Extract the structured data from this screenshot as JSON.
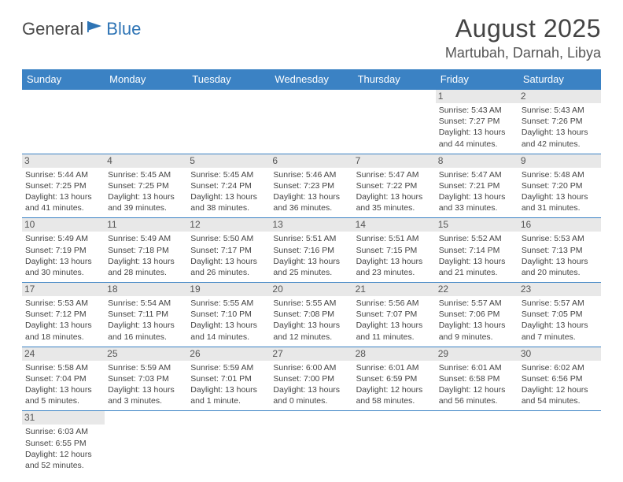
{
  "logo": {
    "text1": "General",
    "text2": "Blue"
  },
  "title": "August 2025",
  "location": "Martubah, Darnah, Libya",
  "colors": {
    "header_bg": "#3b82c4",
    "header_text": "#ffffff",
    "daynum_bg": "#e8e8e8",
    "border": "#3b82c4",
    "logo_gray": "#4a4a4a",
    "logo_blue": "#2e74b5"
  },
  "weekdays": [
    "Sunday",
    "Monday",
    "Tuesday",
    "Wednesday",
    "Thursday",
    "Friday",
    "Saturday"
  ],
  "weeks": [
    [
      null,
      null,
      null,
      null,
      null,
      {
        "d": "1",
        "sr": "Sunrise: 5:43 AM",
        "ss": "Sunset: 7:27 PM",
        "dl1": "Daylight: 13 hours",
        "dl2": "and 44 minutes."
      },
      {
        "d": "2",
        "sr": "Sunrise: 5:43 AM",
        "ss": "Sunset: 7:26 PM",
        "dl1": "Daylight: 13 hours",
        "dl2": "and 42 minutes."
      }
    ],
    [
      {
        "d": "3",
        "sr": "Sunrise: 5:44 AM",
        "ss": "Sunset: 7:25 PM",
        "dl1": "Daylight: 13 hours",
        "dl2": "and 41 minutes."
      },
      {
        "d": "4",
        "sr": "Sunrise: 5:45 AM",
        "ss": "Sunset: 7:25 PM",
        "dl1": "Daylight: 13 hours",
        "dl2": "and 39 minutes."
      },
      {
        "d": "5",
        "sr": "Sunrise: 5:45 AM",
        "ss": "Sunset: 7:24 PM",
        "dl1": "Daylight: 13 hours",
        "dl2": "and 38 minutes."
      },
      {
        "d": "6",
        "sr": "Sunrise: 5:46 AM",
        "ss": "Sunset: 7:23 PM",
        "dl1": "Daylight: 13 hours",
        "dl2": "and 36 minutes."
      },
      {
        "d": "7",
        "sr": "Sunrise: 5:47 AM",
        "ss": "Sunset: 7:22 PM",
        "dl1": "Daylight: 13 hours",
        "dl2": "and 35 minutes."
      },
      {
        "d": "8",
        "sr": "Sunrise: 5:47 AM",
        "ss": "Sunset: 7:21 PM",
        "dl1": "Daylight: 13 hours",
        "dl2": "and 33 minutes."
      },
      {
        "d": "9",
        "sr": "Sunrise: 5:48 AM",
        "ss": "Sunset: 7:20 PM",
        "dl1": "Daylight: 13 hours",
        "dl2": "and 31 minutes."
      }
    ],
    [
      {
        "d": "10",
        "sr": "Sunrise: 5:49 AM",
        "ss": "Sunset: 7:19 PM",
        "dl1": "Daylight: 13 hours",
        "dl2": "and 30 minutes."
      },
      {
        "d": "11",
        "sr": "Sunrise: 5:49 AM",
        "ss": "Sunset: 7:18 PM",
        "dl1": "Daylight: 13 hours",
        "dl2": "and 28 minutes."
      },
      {
        "d": "12",
        "sr": "Sunrise: 5:50 AM",
        "ss": "Sunset: 7:17 PM",
        "dl1": "Daylight: 13 hours",
        "dl2": "and 26 minutes."
      },
      {
        "d": "13",
        "sr": "Sunrise: 5:51 AM",
        "ss": "Sunset: 7:16 PM",
        "dl1": "Daylight: 13 hours",
        "dl2": "and 25 minutes."
      },
      {
        "d": "14",
        "sr": "Sunrise: 5:51 AM",
        "ss": "Sunset: 7:15 PM",
        "dl1": "Daylight: 13 hours",
        "dl2": "and 23 minutes."
      },
      {
        "d": "15",
        "sr": "Sunrise: 5:52 AM",
        "ss": "Sunset: 7:14 PM",
        "dl1": "Daylight: 13 hours",
        "dl2": "and 21 minutes."
      },
      {
        "d": "16",
        "sr": "Sunrise: 5:53 AM",
        "ss": "Sunset: 7:13 PM",
        "dl1": "Daylight: 13 hours",
        "dl2": "and 20 minutes."
      }
    ],
    [
      {
        "d": "17",
        "sr": "Sunrise: 5:53 AM",
        "ss": "Sunset: 7:12 PM",
        "dl1": "Daylight: 13 hours",
        "dl2": "and 18 minutes."
      },
      {
        "d": "18",
        "sr": "Sunrise: 5:54 AM",
        "ss": "Sunset: 7:11 PM",
        "dl1": "Daylight: 13 hours",
        "dl2": "and 16 minutes."
      },
      {
        "d": "19",
        "sr": "Sunrise: 5:55 AM",
        "ss": "Sunset: 7:10 PM",
        "dl1": "Daylight: 13 hours",
        "dl2": "and 14 minutes."
      },
      {
        "d": "20",
        "sr": "Sunrise: 5:55 AM",
        "ss": "Sunset: 7:08 PM",
        "dl1": "Daylight: 13 hours",
        "dl2": "and 12 minutes."
      },
      {
        "d": "21",
        "sr": "Sunrise: 5:56 AM",
        "ss": "Sunset: 7:07 PM",
        "dl1": "Daylight: 13 hours",
        "dl2": "and 11 minutes."
      },
      {
        "d": "22",
        "sr": "Sunrise: 5:57 AM",
        "ss": "Sunset: 7:06 PM",
        "dl1": "Daylight: 13 hours",
        "dl2": "and 9 minutes."
      },
      {
        "d": "23",
        "sr": "Sunrise: 5:57 AM",
        "ss": "Sunset: 7:05 PM",
        "dl1": "Daylight: 13 hours",
        "dl2": "and 7 minutes."
      }
    ],
    [
      {
        "d": "24",
        "sr": "Sunrise: 5:58 AM",
        "ss": "Sunset: 7:04 PM",
        "dl1": "Daylight: 13 hours",
        "dl2": "and 5 minutes."
      },
      {
        "d": "25",
        "sr": "Sunrise: 5:59 AM",
        "ss": "Sunset: 7:03 PM",
        "dl1": "Daylight: 13 hours",
        "dl2": "and 3 minutes."
      },
      {
        "d": "26",
        "sr": "Sunrise: 5:59 AM",
        "ss": "Sunset: 7:01 PM",
        "dl1": "Daylight: 13 hours",
        "dl2": "and 1 minute."
      },
      {
        "d": "27",
        "sr": "Sunrise: 6:00 AM",
        "ss": "Sunset: 7:00 PM",
        "dl1": "Daylight: 13 hours",
        "dl2": "and 0 minutes."
      },
      {
        "d": "28",
        "sr": "Sunrise: 6:01 AM",
        "ss": "Sunset: 6:59 PM",
        "dl1": "Daylight: 12 hours",
        "dl2": "and 58 minutes."
      },
      {
        "d": "29",
        "sr": "Sunrise: 6:01 AM",
        "ss": "Sunset: 6:58 PM",
        "dl1": "Daylight: 12 hours",
        "dl2": "and 56 minutes."
      },
      {
        "d": "30",
        "sr": "Sunrise: 6:02 AM",
        "ss": "Sunset: 6:56 PM",
        "dl1": "Daylight: 12 hours",
        "dl2": "and 54 minutes."
      }
    ],
    [
      {
        "d": "31",
        "sr": "Sunrise: 6:03 AM",
        "ss": "Sunset: 6:55 PM",
        "dl1": "Daylight: 12 hours",
        "dl2": "and 52 minutes."
      },
      null,
      null,
      null,
      null,
      null,
      null
    ]
  ]
}
